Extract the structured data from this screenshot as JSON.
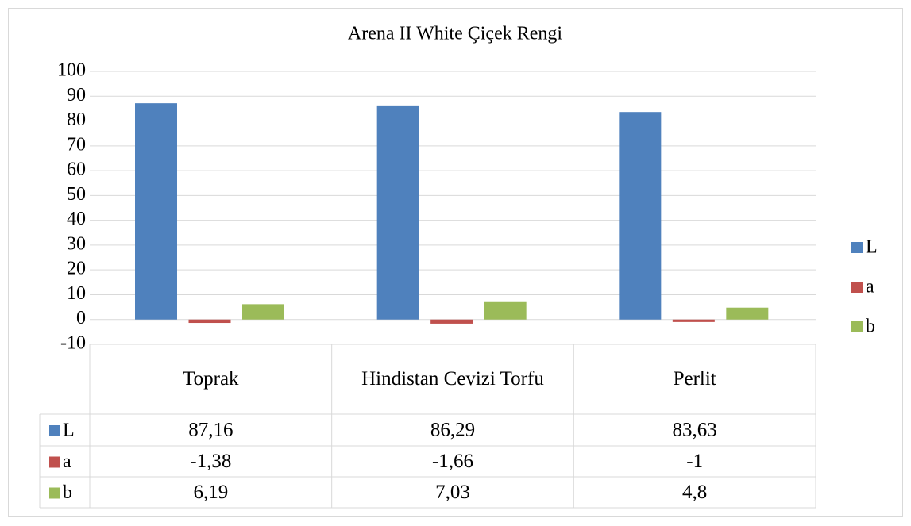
{
  "chart_data": {
    "type": "bar",
    "title": "Arena II White Çiçek Rengi",
    "categories": [
      "Toprak",
      "Hindistan Cevizi Torfu",
      "Perlit"
    ],
    "series": [
      {
        "name": "L",
        "color": "#4f81bd",
        "values": [
          87.16,
          86.29,
          83.63
        ],
        "value_labels": [
          "87,16",
          "86,29",
          "83,63"
        ]
      },
      {
        "name": "a",
        "color": "#c0504d",
        "values": [
          -1.38,
          -1.66,
          -1
        ],
        "value_labels": [
          "-1,38",
          "-1,66",
          "-1"
        ]
      },
      {
        "name": "b",
        "color": "#9bbb59",
        "values": [
          6.19,
          7.03,
          4.8
        ],
        "value_labels": [
          "6,19",
          "7,03",
          "4,8"
        ]
      }
    ],
    "ylim": [
      -10,
      100
    ],
    "yticks": [
      -10,
      0,
      10,
      20,
      30,
      40,
      50,
      60,
      70,
      80,
      90,
      100
    ],
    "grid": true,
    "legend": "right"
  }
}
